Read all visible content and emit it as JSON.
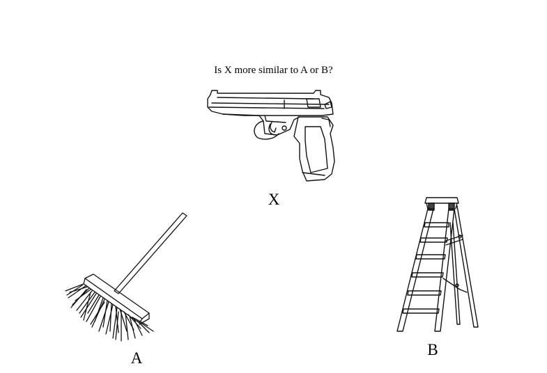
{
  "question": "Is X more similar to A or B?",
  "items": {
    "x": {
      "label": "X",
      "icon": "pistol-icon"
    },
    "a": {
      "label": "A",
      "icon": "broom-icon"
    },
    "b": {
      "label": "B",
      "icon": "ladder-icon"
    }
  }
}
